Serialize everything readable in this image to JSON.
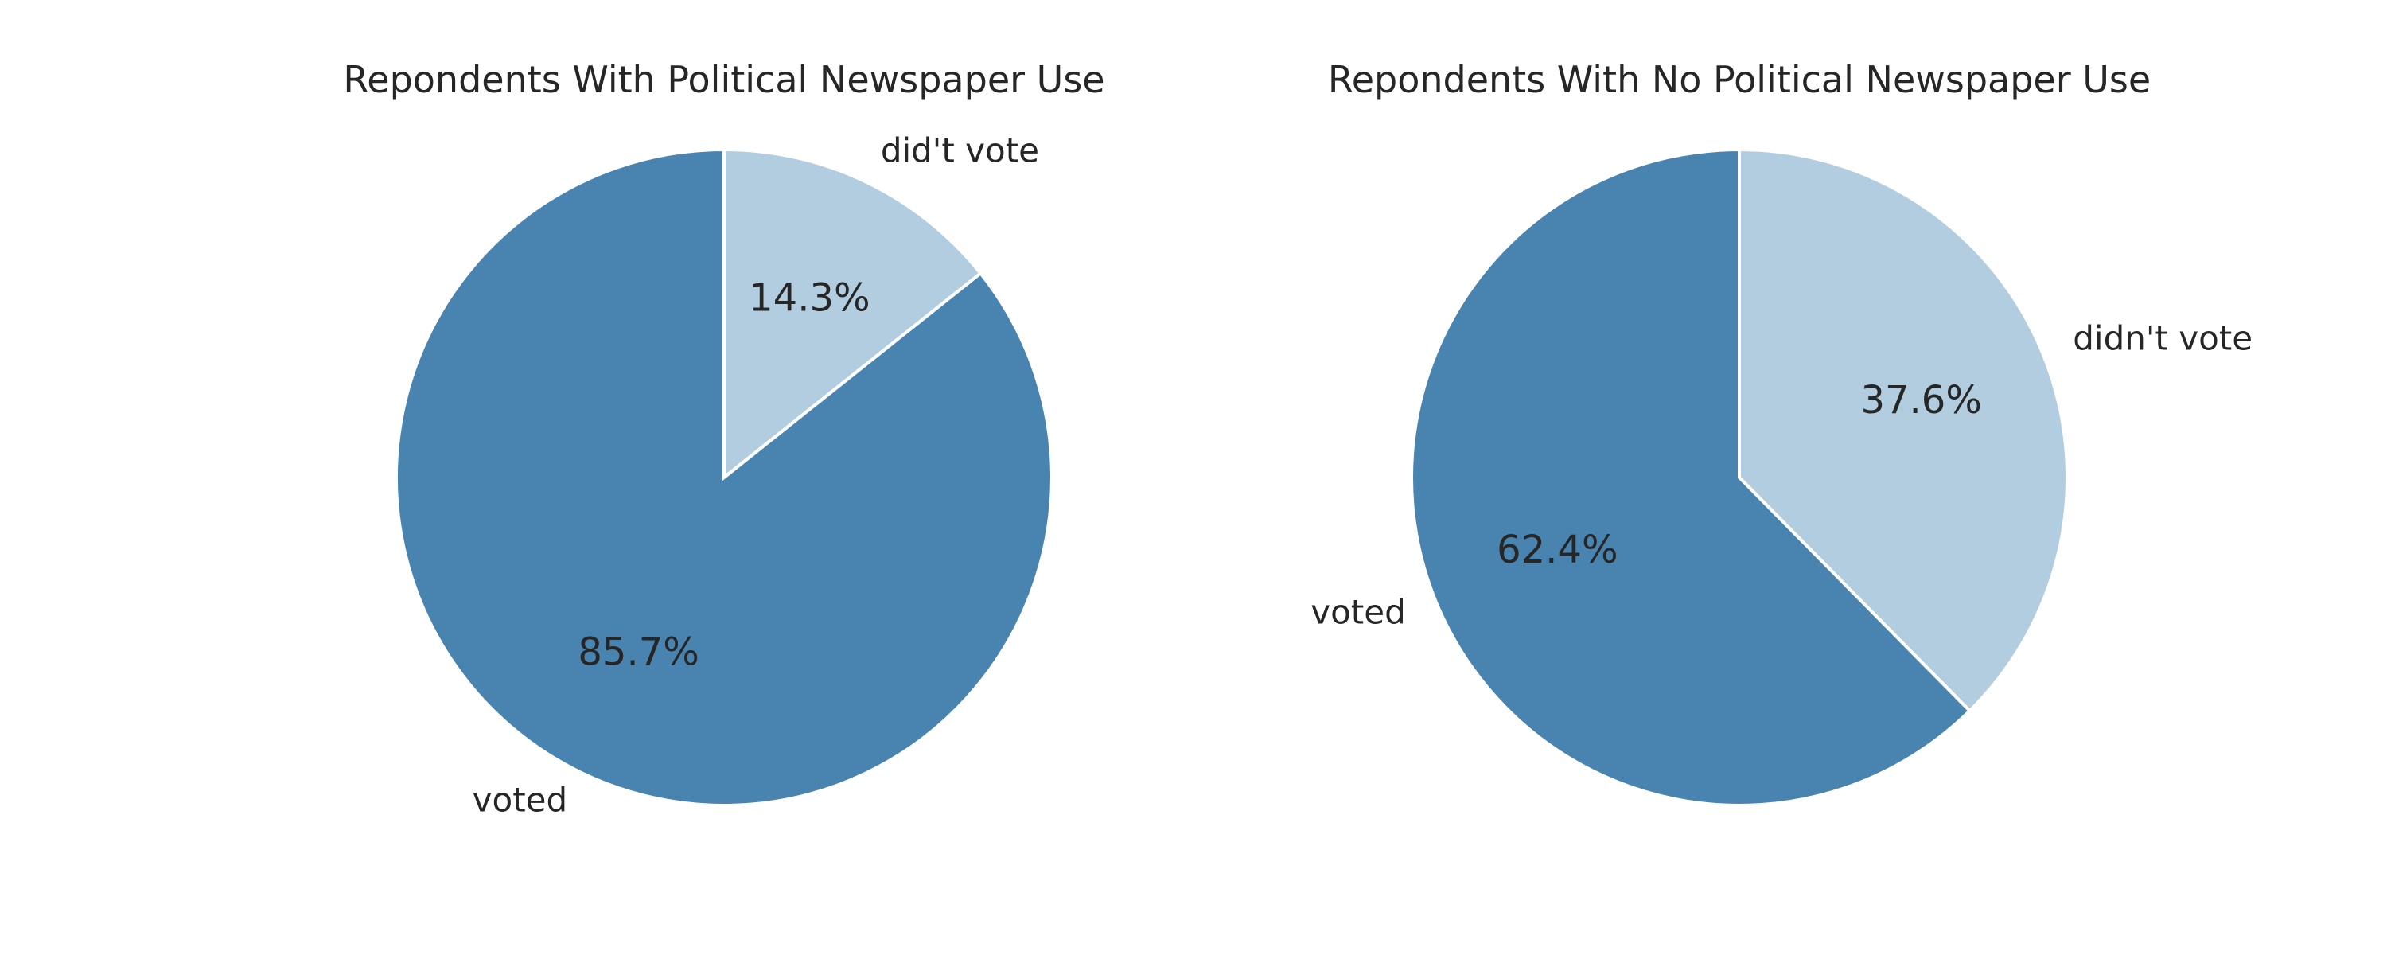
{
  "chart_data": [
    {
      "type": "pie",
      "title": "Repondents With Political Newspaper Use",
      "start_angle_deg": 90,
      "direction": "clockwise",
      "slices": [
        {
          "label": "did't vote",
          "value": 14.3,
          "pct_label": "14.3%",
          "color": "#b3cde0"
        },
        {
          "label": "voted",
          "value": 85.7,
          "pct_label": "85.7%",
          "color": "#4984b0"
        }
      ]
    },
    {
      "type": "pie",
      "title": "Repondents With No Political Newspaper Use",
      "start_angle_deg": 90,
      "direction": "clockwise",
      "slices": [
        {
          "label": "didn't vote",
          "value": 37.6,
          "pct_label": "37.6%",
          "color": "#b3cde0"
        },
        {
          "label": "voted",
          "value": 62.4,
          "pct_label": "62.4%",
          "color": "#4984b0"
        }
      ]
    }
  ],
  "style": {
    "background": "#ffffff",
    "edge_color": "#ffffff",
    "text_color": "#262626"
  }
}
